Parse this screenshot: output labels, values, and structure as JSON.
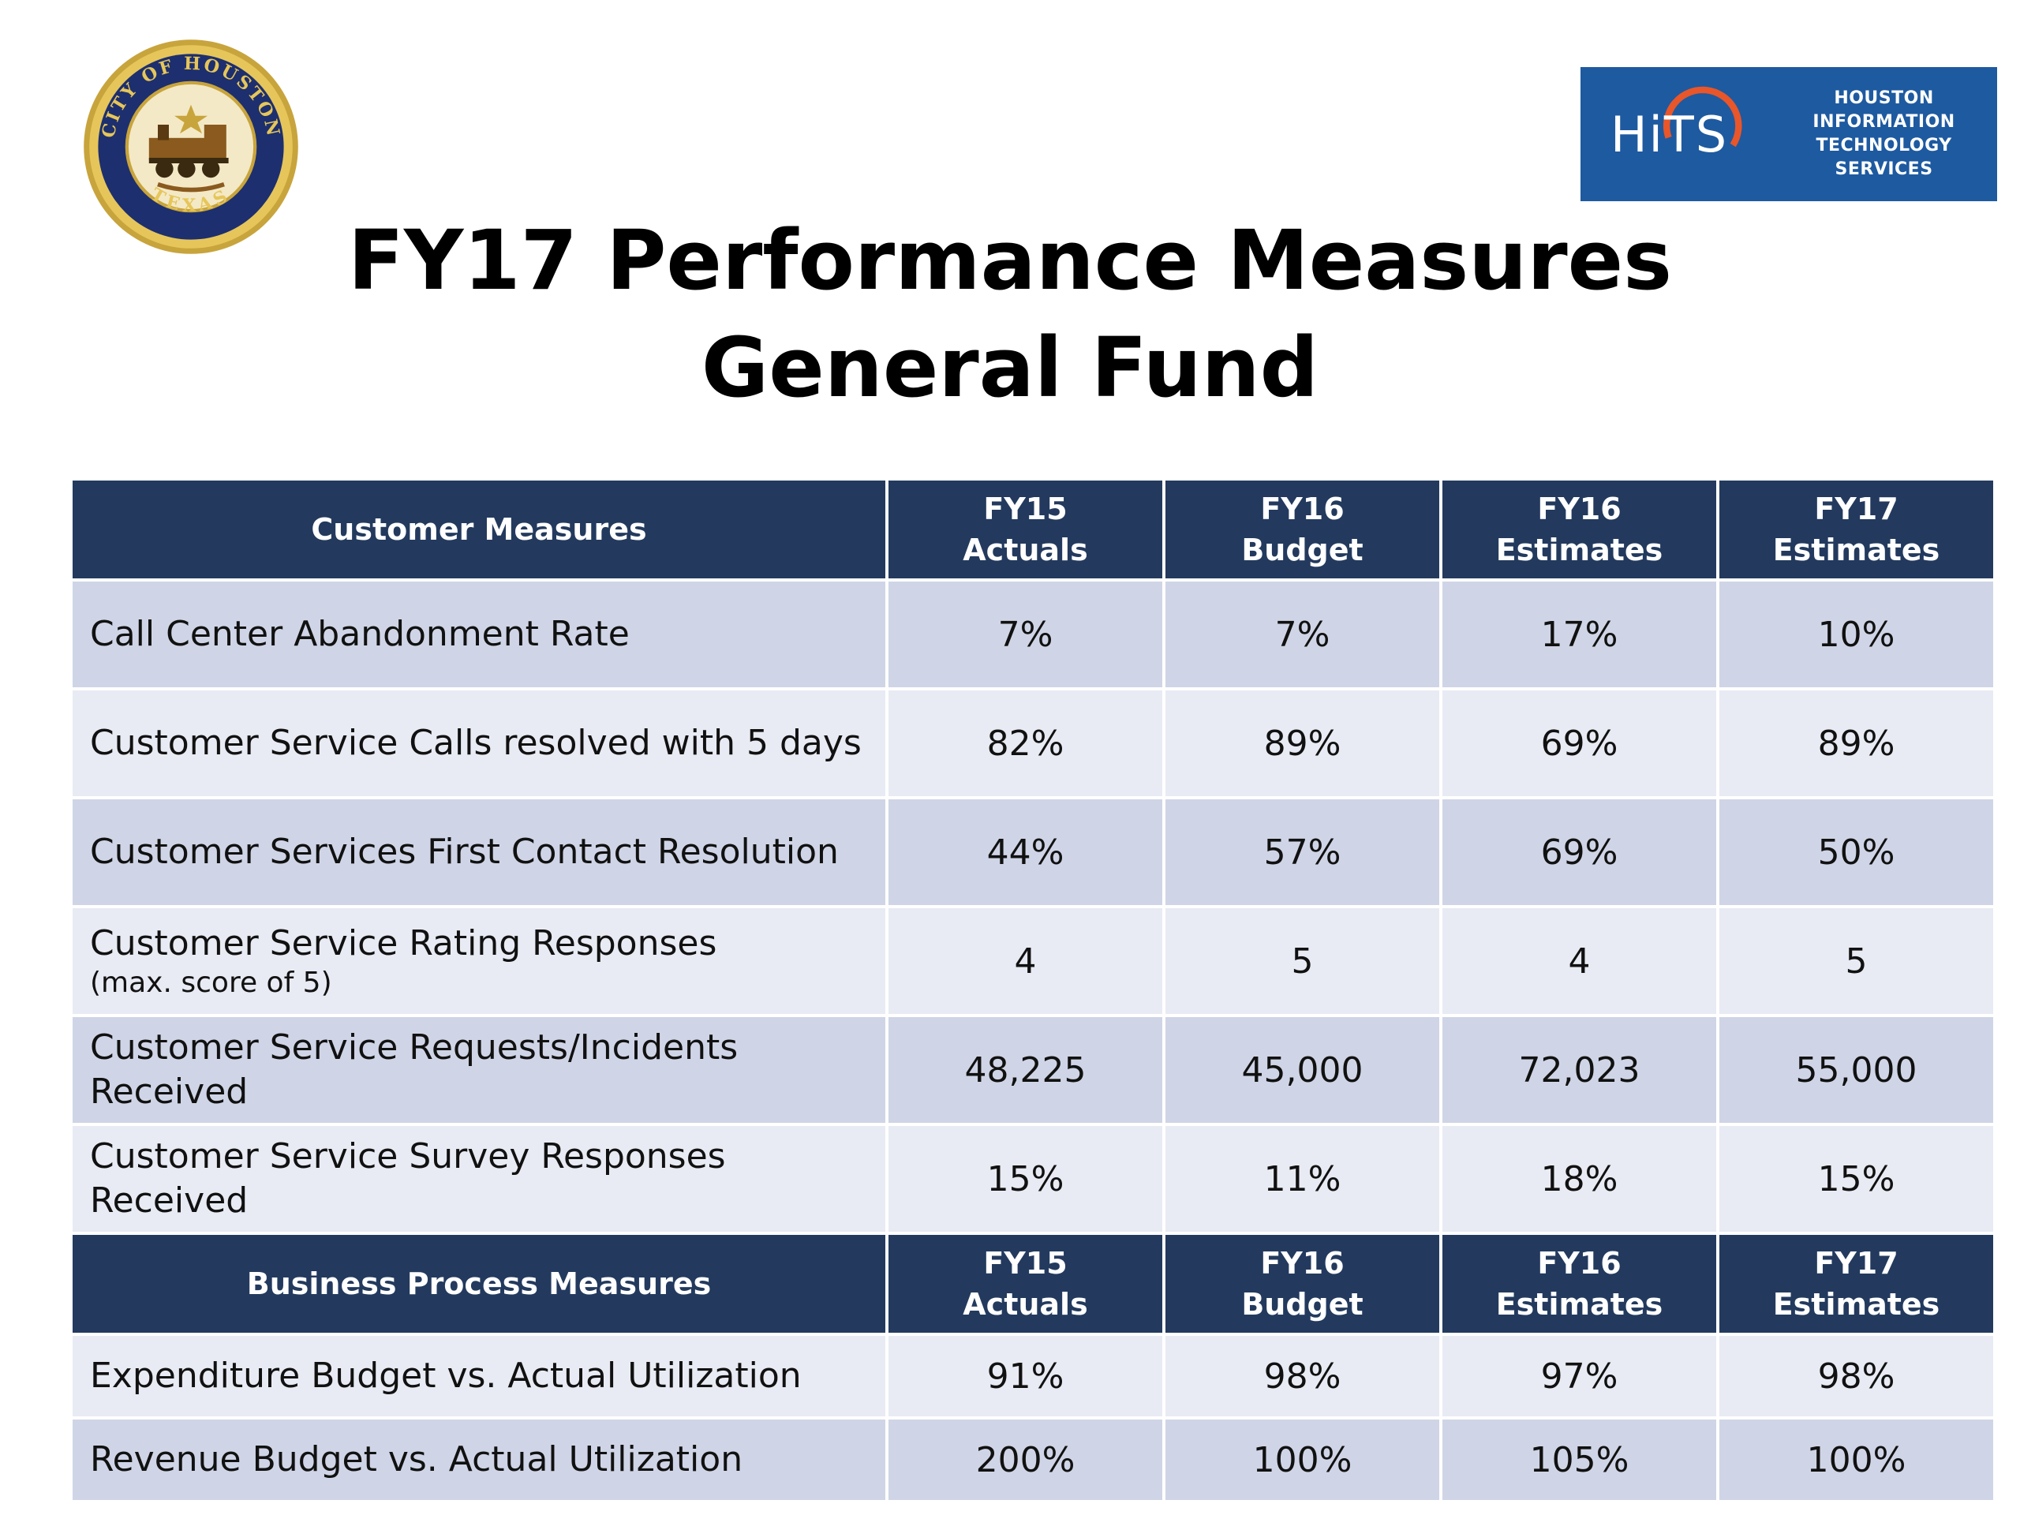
{
  "header": {
    "seal": {
      "text_top": "CITY OF HOUSTON",
      "text_bottom": "TEXAS"
    },
    "logo": {
      "mark": "HiTS",
      "line1": "HOUSTON INFORMATION",
      "line2": "TECHNOLOGY SERVICES",
      "bg_color": "#1e5aa0",
      "accent_color": "#e8562a"
    },
    "title_line1": "FY17 Performance Measures",
    "title_line2": "General Fund"
  },
  "colors": {
    "header_bg": "#233a5e",
    "row_dark": "#cfd5e6",
    "row_light": "#e8ebf3"
  },
  "customer": {
    "header": {
      "label": "Customer Measures",
      "cols": [
        {
          "line1": "FY15",
          "line2": "Actuals"
        },
        {
          "line1": "FY16",
          "line2": "Budget"
        },
        {
          "line1": "FY16",
          "line2": "Estimates"
        },
        {
          "line1": "FY17",
          "line2": "Estimates"
        }
      ]
    },
    "rows": [
      {
        "label": "Call Center Abandonment Rate",
        "sub": "",
        "values": [
          "7%",
          "7%",
          "17%",
          "10%"
        ]
      },
      {
        "label": "Customer Service Calls resolved with 5 days",
        "sub": "",
        "values": [
          "82%",
          "89%",
          "69%",
          "89%"
        ]
      },
      {
        "label": "Customer Services First Contact Resolution",
        "sub": "",
        "values": [
          "44%",
          "57%",
          "69%",
          "50%"
        ]
      },
      {
        "label": "Customer Service Rating Responses",
        "sub": "(max. score of 5)",
        "values": [
          "4",
          "5",
          "4",
          "5"
        ]
      },
      {
        "label": "Customer Service Requests/Incidents Received",
        "sub": "",
        "values": [
          "48,225",
          "45,000",
          "72,023",
          "55,000"
        ]
      },
      {
        "label": "Customer Service Survey Responses Received",
        "sub": "",
        "values": [
          "15%",
          "11%",
          "18%",
          "15%"
        ]
      }
    ]
  },
  "business": {
    "header": {
      "label": "Business Process Measures",
      "cols": [
        {
          "line1": "FY15",
          "line2": "Actuals"
        },
        {
          "line1": "FY16",
          "line2": "Budget"
        },
        {
          "line1": "FY16",
          "line2": "Estimates"
        },
        {
          "line1": "FY17",
          "line2": "Estimates"
        }
      ]
    },
    "rows": [
      {
        "label": "Expenditure Budget vs. Actual Utilization",
        "values": [
          "91%",
          "98%",
          "97%",
          "98%"
        ]
      },
      {
        "label": "Revenue Budget vs. Actual Utilization",
        "values": [
          "200%",
          "100%",
          "105%",
          "100%"
        ]
      }
    ]
  }
}
